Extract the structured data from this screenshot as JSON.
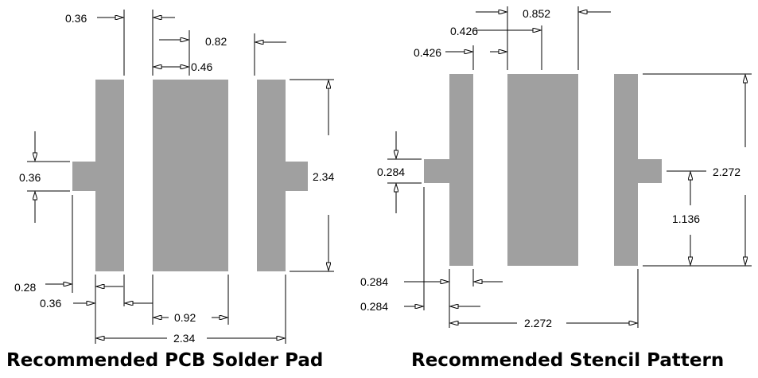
{
  "pcb": {
    "caption": "Recommended PCB Solder Pad",
    "labels": {
      "pad_width": "0.36",
      "pitch": "0.82",
      "gap": "0.46",
      "tab_height": "0.36",
      "pad_height": "2.34",
      "tab_length": "0.28",
      "pad_width_bottom": "0.36",
      "center_width": "0.92",
      "total_width": "2.34"
    }
  },
  "stencil": {
    "caption": "Recommended Stencil Pattern",
    "labels": {
      "center_width": "0.852",
      "gap": "0.426",
      "pad_width": "0.426",
      "tab_height": "0.284",
      "pad_height": "2.272",
      "tab_offset": "1.136",
      "tab_length": "0.284",
      "pad_width_bottom": "0.284",
      "total_width": "2.272"
    }
  },
  "colors": {
    "pad": "#a0a0a0",
    "line": "#000000"
  }
}
